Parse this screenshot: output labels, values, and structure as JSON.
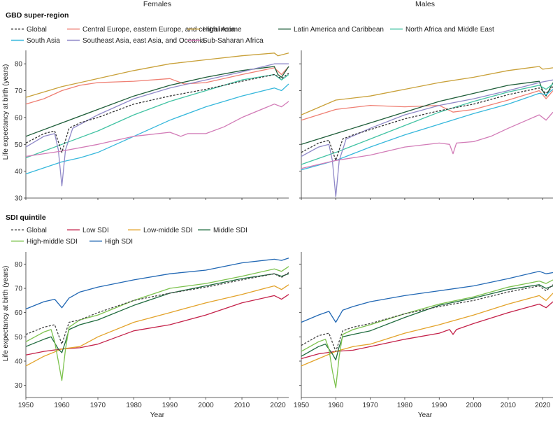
{
  "columns": [
    "Females",
    "Males"
  ],
  "sections": [
    {
      "id": "gbd",
      "title": "GBD super-region"
    },
    {
      "id": "sdi",
      "title": "SDI quintile"
    }
  ],
  "ylabel": "Life expectancy at birth (years)",
  "xlabel": "Year",
  "legends": {
    "gbd": [
      {
        "name": "Global",
        "color": "#333333",
        "dash": true
      },
      {
        "name": "Central Europe, eastern Europe, and central Asia",
        "color": "#ef7f73",
        "dash": false
      },
      {
        "name": "High income",
        "color": "#c9a13a",
        "dash": false
      },
      {
        "name": "Latin America and Caribbean",
        "color": "#1f5e3a",
        "dash": false
      },
      {
        "name": "North Africa and Middle East",
        "color": "#42c3a4",
        "dash": false
      },
      {
        "name": "South Asia",
        "color": "#37b8dc",
        "dash": false
      },
      {
        "name": "Southeast Asia, east Asia, and Oceania",
        "color": "#8f88c8",
        "dash": false
      },
      {
        "name": "Sub-Saharan Africa",
        "color": "#d27bb7",
        "dash": false
      }
    ],
    "sdi": [
      {
        "name": "Global",
        "color": "#444444",
        "dash": true
      },
      {
        "name": "Low SDI",
        "color": "#c4224a",
        "dash": false
      },
      {
        "name": "Low-middle SDI",
        "color": "#e3a32b",
        "dash": false
      },
      {
        "name": "Middle SDI",
        "color": "#1f6b3e",
        "dash": false
      },
      {
        "name": "High-middle SDI",
        "color": "#7cc24d",
        "dash": false
      },
      {
        "name": "High SDI",
        "color": "#2268b4",
        "dash": false
      }
    ]
  },
  "chart_data": [
    {
      "type": "line",
      "panel": "gbd-females",
      "column": "Females",
      "section": "GBD super-region",
      "xlabel": "",
      "ylabel": "Life expectancy at birth (years)",
      "xlim": [
        1950,
        2023
      ],
      "ylim": [
        30,
        85
      ],
      "xticks": [
        1950,
        1960,
        1970,
        1980,
        1990,
        2000,
        2010,
        2020
      ],
      "yticks": [
        30,
        40,
        50,
        60,
        70,
        80
      ],
      "series": [
        {
          "name": "Global",
          "x": [
            1950,
            1955,
            1958,
            1960,
            1962,
            1965,
            1970,
            1980,
            1990,
            2000,
            2010,
            2019,
            2021,
            2023
          ],
          "y": [
            50.5,
            54,
            55,
            47,
            56,
            58,
            60,
            65,
            68,
            70.5,
            73.5,
            76,
            74.5,
            76.5
          ]
        },
        {
          "name": "Central Europe, eastern Europe, and central Asia",
          "x": [
            1950,
            1955,
            1960,
            1965,
            1970,
            1980,
            1990,
            1994,
            2000,
            2010,
            2019,
            2021,
            2023
          ],
          "y": [
            65,
            67,
            70,
            72,
            73,
            73.5,
            74.5,
            72.5,
            73,
            76,
            78.5,
            76,
            79
          ]
        },
        {
          "name": "High income",
          "x": [
            1950,
            1960,
            1970,
            1980,
            1990,
            2000,
            2010,
            2019,
            2020,
            2023
          ],
          "y": [
            67.5,
            71.5,
            74.5,
            77.5,
            80,
            81.5,
            83,
            84,
            83,
            84
          ]
        },
        {
          "name": "Latin America and Caribbean",
          "x": [
            1950,
            1960,
            1970,
            1980,
            1990,
            2000,
            2010,
            2019,
            2020,
            2021,
            2023
          ],
          "y": [
            53,
            58,
            63,
            68,
            72,
            75,
            77.5,
            79,
            76,
            75,
            79
          ]
        },
        {
          "name": "North Africa and Middle East",
          "x": [
            1950,
            1960,
            1970,
            1980,
            1990,
            2000,
            2010,
            2019,
            2021,
            2023
          ],
          "y": [
            45,
            50,
            55,
            61,
            66,
            70,
            74,
            76,
            74,
            76
          ]
        },
        {
          "name": "South Asia",
          "x": [
            1950,
            1960,
            1965,
            1970,
            1980,
            1990,
            2000,
            2010,
            2019,
            2021,
            2023
          ],
          "y": [
            39,
            43.5,
            45,
            47,
            53,
            59,
            64,
            68,
            71,
            70,
            72.5
          ]
        },
        {
          "name": "Southeast Asia, east Asia, and Oceania",
          "x": [
            1950,
            1955,
            1958,
            1959,
            1960,
            1961,
            1963,
            1970,
            1980,
            1990,
            2000,
            2010,
            2019,
            2023
          ],
          "y": [
            49,
            53,
            54,
            48,
            34.5,
            48,
            56,
            61,
            67,
            71,
            74,
            77,
            80,
            80
          ]
        },
        {
          "name": "Sub-Saharan Africa",
          "x": [
            1950,
            1960,
            1970,
            1980,
            1990,
            1993,
            1995,
            2000,
            2005,
            2010,
            2019,
            2021,
            2023
          ],
          "y": [
            45.5,
            47.5,
            50,
            53,
            54.5,
            53,
            54,
            54,
            56.5,
            60,
            65,
            64,
            66
          ]
        }
      ]
    },
    {
      "type": "line",
      "panel": "gbd-males",
      "column": "Males",
      "section": "GBD super-region",
      "xlabel": "",
      "ylabel": "",
      "xlim": [
        1950,
        2023
      ],
      "ylim": [
        30,
        85
      ],
      "xticks": [
        1950,
        1960,
        1970,
        1980,
        1990,
        2000,
        2010,
        2020
      ],
      "yticks": [
        30,
        40,
        50,
        60,
        70,
        80
      ],
      "series": [
        {
          "name": "Global",
          "x": [
            1950,
            1955,
            1958,
            1960,
            1962,
            1965,
            1970,
            1980,
            1990,
            2000,
            2010,
            2019,
            2021,
            2023
          ],
          "y": [
            47,
            50.5,
            51.5,
            44,
            52,
            53.5,
            55.5,
            59.5,
            62.5,
            65,
            68.5,
            71,
            69,
            71.5
          ]
        },
        {
          "name": "Central Europe, eastern Europe, and central Asia",
          "x": [
            1950,
            1960,
            1970,
            1980,
            1990,
            1994,
            2000,
            2010,
            2019,
            2021,
            2023
          ],
          "y": [
            59,
            63,
            64.5,
            64,
            64.5,
            62,
            63,
            66.5,
            70,
            67,
            70
          ]
        },
        {
          "name": "High income",
          "x": [
            1950,
            1960,
            1970,
            1980,
            1990,
            2000,
            2010,
            2019,
            2020,
            2023
          ],
          "y": [
            61,
            66.5,
            68,
            70.5,
            73,
            75,
            77.5,
            79,
            78,
            78.5
          ]
        },
        {
          "name": "Latin America and Caribbean",
          "x": [
            1950,
            1960,
            1970,
            1980,
            1990,
            2000,
            2010,
            2019,
            2020,
            2021,
            2023
          ],
          "y": [
            50,
            54,
            58,
            62,
            66,
            69,
            72,
            73.5,
            70,
            68,
            73
          ]
        },
        {
          "name": "North Africa and Middle East",
          "x": [
            1950,
            1960,
            1970,
            1980,
            1990,
            2000,
            2010,
            2019,
            2021,
            2023
          ],
          "y": [
            42.5,
            47,
            52,
            57,
            62,
            66,
            69.5,
            72,
            70.5,
            72.5
          ]
        },
        {
          "name": "South Asia",
          "x": [
            1950,
            1960,
            1970,
            1980,
            1990,
            2000,
            2010,
            2019,
            2021,
            2023
          ],
          "y": [
            40.5,
            44,
            49,
            53.5,
            57.5,
            61.5,
            65,
            69,
            68.5,
            70.5
          ]
        },
        {
          "name": "Southeast Asia, east Asia, and Oceania",
          "x": [
            1950,
            1955,
            1958,
            1959,
            1960,
            1961,
            1963,
            1970,
            1980,
            1990,
            2000,
            2010,
            2019,
            2023
          ],
          "y": [
            45.5,
            49,
            50,
            44,
            30.5,
            44,
            52,
            56,
            61,
            64.5,
            67,
            70,
            73,
            74
          ]
        },
        {
          "name": "Sub-Saharan Africa",
          "x": [
            1950,
            1960,
            1970,
            1980,
            1990,
            1993,
            1994,
            1995,
            2000,
            2005,
            2010,
            2019,
            2021,
            2023
          ],
          "y": [
            41,
            44,
            46,
            49,
            50.5,
            50,
            46.5,
            50.5,
            51,
            53,
            56,
            61,
            59,
            62
          ]
        }
      ]
    },
    {
      "type": "line",
      "panel": "sdi-females",
      "column": "Females",
      "section": "SDI quintile",
      "xlabel": "Year",
      "ylabel": "Life expectancy at birth (years)",
      "xlim": [
        1950,
        2023
      ],
      "ylim": [
        25,
        85
      ],
      "xticks": [
        1950,
        1960,
        1970,
        1980,
        1990,
        2000,
        2010,
        2020
      ],
      "yticks": [
        30,
        40,
        50,
        60,
        70,
        80
      ],
      "series": [
        {
          "name": "Global",
          "x": [
            1950,
            1955,
            1958,
            1960,
            1962,
            1965,
            1970,
            1980,
            1990,
            2000,
            2010,
            2019,
            2021,
            2023
          ],
          "y": [
            51,
            54,
            55,
            47,
            56,
            57,
            60,
            65,
            68,
            70.5,
            73.5,
            76,
            74.5,
            76.5
          ]
        },
        {
          "name": "Low SDI",
          "x": [
            1950,
            1955,
            1960,
            1965,
            1970,
            1980,
            1990,
            2000,
            2010,
            2019,
            2021,
            2023
          ],
          "y": [
            42.5,
            44,
            45,
            45.5,
            47,
            52.5,
            55,
            59,
            64,
            67,
            65.5,
            67.5
          ]
        },
        {
          "name": "Low-middle SDI",
          "x": [
            1950,
            1955,
            1960,
            1965,
            1970,
            1980,
            1990,
            2000,
            2010,
            2019,
            2021,
            2023
          ],
          "y": [
            38,
            42,
            45,
            46,
            50,
            56,
            60,
            64,
            67.5,
            71,
            69.5,
            71.5
          ]
        },
        {
          "name": "Middle SDI",
          "x": [
            1950,
            1955,
            1957,
            1959,
            1960,
            1961,
            1962,
            1965,
            1970,
            1980,
            1990,
            2000,
            2010,
            2019,
            2021,
            2023
          ],
          "y": [
            46,
            49,
            50,
            45,
            43.5,
            48,
            53,
            55,
            57,
            63,
            68,
            71,
            74,
            76,
            75,
            76
          ]
        },
        {
          "name": "High-middle SDI",
          "x": [
            1950,
            1955,
            1957,
            1958,
            1959,
            1960,
            1961,
            1962,
            1965,
            1970,
            1980,
            1990,
            2000,
            2010,
            2019,
            2021,
            2023
          ],
          "y": [
            48,
            52,
            53,
            48,
            40,
            32,
            45,
            54,
            57,
            59,
            65,
            70,
            72,
            75,
            78,
            77,
            79
          ]
        },
        {
          "name": "High SDI",
          "x": [
            1950,
            1955,
            1958,
            1960,
            1962,
            1965,
            1970,
            1980,
            1990,
            2000,
            2010,
            2019,
            2021,
            2023
          ],
          "y": [
            61.5,
            64.5,
            65.5,
            62,
            66,
            68.5,
            70.5,
            73.5,
            76,
            77.5,
            80.5,
            82,
            81.5,
            82.5
          ]
        }
      ]
    },
    {
      "type": "line",
      "panel": "sdi-males",
      "column": "Males",
      "section": "SDI quintile",
      "xlabel": "Year",
      "ylabel": "",
      "xlim": [
        1950,
        2023
      ],
      "ylim": [
        25,
        85
      ],
      "xticks": [
        1950,
        1960,
        1970,
        1980,
        1990,
        2000,
        2010,
        2020
      ],
      "yticks": [
        30,
        40,
        50,
        60,
        70,
        80
      ],
      "series": [
        {
          "name": "Global",
          "x": [
            1950,
            1955,
            1958,
            1960,
            1962,
            1965,
            1970,
            1980,
            1990,
            2000,
            2010,
            2019,
            2021,
            2023
          ],
          "y": [
            46.5,
            50.5,
            51.5,
            44,
            52.5,
            54,
            55.5,
            59.5,
            62.5,
            65,
            68.5,
            71,
            69,
            71.5
          ]
        },
        {
          "name": "Low SDI",
          "x": [
            1950,
            1955,
            1960,
            1965,
            1970,
            1980,
            1990,
            1993,
            1994,
            1995,
            2000,
            2010,
            2019,
            2021,
            2023
          ],
          "y": [
            41,
            43,
            44,
            44.5,
            46,
            49,
            51.5,
            53,
            51,
            53,
            55.5,
            60,
            63.5,
            62,
            64.5
          ]
        },
        {
          "name": "Low-middle SDI",
          "x": [
            1950,
            1955,
            1960,
            1965,
            1970,
            1980,
            1990,
            2000,
            2010,
            2019,
            2021,
            2023
          ],
          "y": [
            38,
            41,
            44,
            46,
            47,
            51.5,
            55,
            59,
            63.5,
            67,
            65,
            68
          ]
        },
        {
          "name": "Middle SDI",
          "x": [
            1950,
            1955,
            1957,
            1959,
            1960,
            1961,
            1962,
            1965,
            1970,
            1980,
            1990,
            2000,
            2010,
            2019,
            2021,
            2023
          ],
          "y": [
            42,
            46,
            47,
            43,
            40.5,
            46,
            50,
            51,
            52.5,
            58,
            63,
            66,
            69.5,
            71.5,
            70,
            71
          ]
        },
        {
          "name": "High-middle SDI",
          "x": [
            1950,
            1955,
            1957,
            1958,
            1959,
            1960,
            1961,
            1962,
            1965,
            1970,
            1980,
            1990,
            2000,
            2010,
            2019,
            2021,
            2023
          ],
          "y": [
            44,
            48,
            49,
            45,
            36,
            29,
            42,
            51,
            53,
            55,
            59.5,
            63.5,
            66.5,
            70.5,
            73,
            72,
            73.5
          ]
        },
        {
          "name": "High SDI",
          "x": [
            1950,
            1955,
            1958,
            1960,
            1962,
            1965,
            1970,
            1980,
            1990,
            2000,
            2010,
            2019,
            2021,
            2023
          ],
          "y": [
            56,
            59,
            60.5,
            56,
            61,
            62.5,
            64.5,
            67,
            69,
            71,
            74,
            77,
            76,
            76.5
          ]
        }
      ]
    }
  ]
}
